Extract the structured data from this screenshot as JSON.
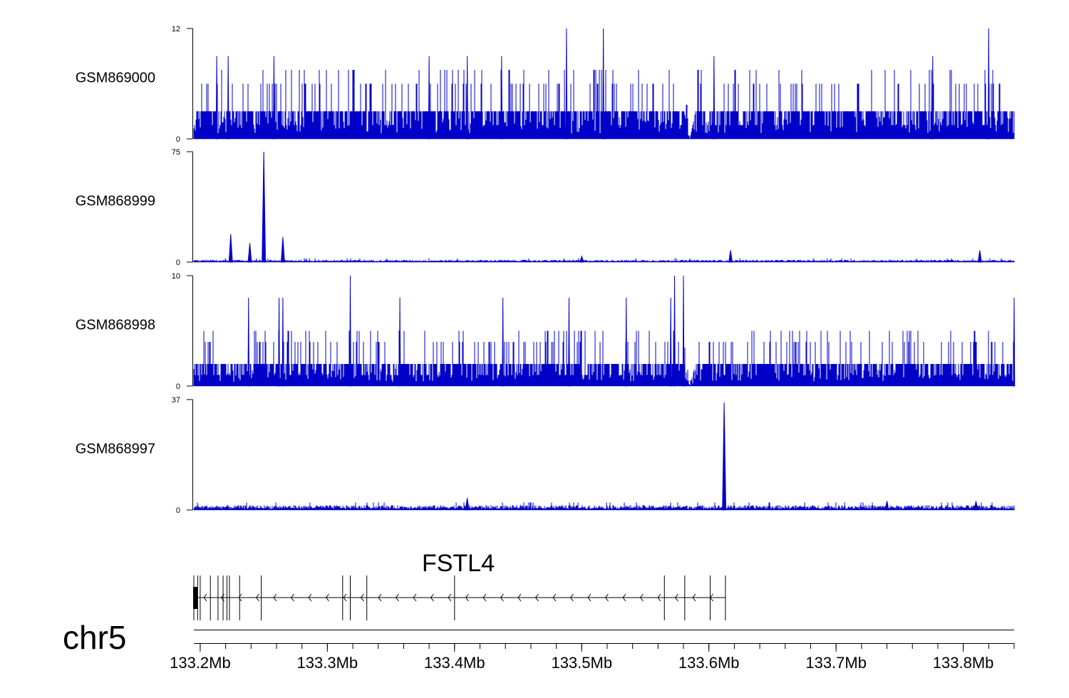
{
  "chart_data": {
    "type": "area",
    "chromosome": "chr5",
    "xlim": [
      133.195,
      133.84
    ],
    "x_unit": "Mb",
    "series_color": "#0000c8",
    "tracks": [
      {
        "name": "GSM869000",
        "ylim": [
          0,
          12
        ],
        "y_tick_labels": [
          "12",
          "0"
        ],
        "base_level": 3,
        "mid_level": 6,
        "peaks": [
          {
            "x": 133.488,
            "y": 12
          },
          {
            "x": 133.517,
            "y": 12
          },
          {
            "x": 133.82,
            "y": 12
          },
          {
            "x": 133.213,
            "y": 9
          },
          {
            "x": 133.222,
            "y": 9
          },
          {
            "x": 133.258,
            "y": 9
          },
          {
            "x": 133.38,
            "y": 9
          },
          {
            "x": 133.41,
            "y": 9
          },
          {
            "x": 133.437,
            "y": 9
          },
          {
            "x": 133.604,
            "y": 9
          },
          {
            "x": 133.776,
            "y": 9
          }
        ],
        "dips": [
          133.585
        ]
      },
      {
        "name": "GSM868999",
        "ylim": [
          0,
          75
        ],
        "y_tick_labels": [
          "75",
          "0"
        ],
        "base_level": 1,
        "peaks": [
          {
            "x": 133.25,
            "y": 75
          },
          {
            "x": 133.224,
            "y": 19
          },
          {
            "x": 133.265,
            "y": 17
          },
          {
            "x": 133.239,
            "y": 13
          },
          {
            "x": 133.617,
            "y": 8
          },
          {
            "x": 133.813,
            "y": 8
          },
          {
            "x": 133.5,
            "y": 4
          }
        ]
      },
      {
        "name": "GSM868998",
        "ylim": [
          0,
          10
        ],
        "y_tick_labels": [
          "10",
          "0"
        ],
        "base_level": 2,
        "mid_level": 4,
        "peaks": [
          {
            "x": 133.58,
            "y": 10
          },
          {
            "x": 133.573,
            "y": 10
          },
          {
            "x": 133.318,
            "y": 10
          },
          {
            "x": 133.238,
            "y": 8
          },
          {
            "x": 133.262,
            "y": 8
          },
          {
            "x": 133.265,
            "y": 8
          },
          {
            "x": 133.357,
            "y": 8
          },
          {
            "x": 133.438,
            "y": 8
          },
          {
            "x": 133.49,
            "y": 8
          },
          {
            "x": 133.535,
            "y": 8
          },
          {
            "x": 133.57,
            "y": 8
          },
          {
            "x": 133.84,
            "y": 8
          }
        ],
        "dips": [
          133.585
        ]
      },
      {
        "name": "GSM868997",
        "ylim": [
          0,
          37
        ],
        "y_tick_labels": [
          "37",
          "0"
        ],
        "base_level": 1,
        "peaks": [
          {
            "x": 133.612,
            "y": 36
          },
          {
            "x": 133.41,
            "y": 4
          },
          {
            "x": 133.74,
            "y": 3
          },
          {
            "x": 133.81,
            "y": 3
          }
        ]
      }
    ],
    "gene": {
      "name": "FSTL4",
      "start": 133.195,
      "end": 133.613,
      "strand": "-",
      "exons": [
        133.195,
        133.198,
        133.2,
        133.208,
        133.214,
        133.218,
        133.221,
        133.223,
        133.231,
        133.248,
        133.312,
        133.318,
        133.331,
        133.4,
        133.565,
        133.581,
        133.601,
        133.613
      ]
    },
    "x_tick_labels": [
      "133.2Mb",
      "133.3Mb",
      "133.4Mb",
      "133.5Mb",
      "133.6Mb",
      "133.7Mb",
      "133.8Mb"
    ],
    "x_tick_values": [
      133.2,
      133.3,
      133.4,
      133.5,
      133.6,
      133.7,
      133.8
    ]
  }
}
